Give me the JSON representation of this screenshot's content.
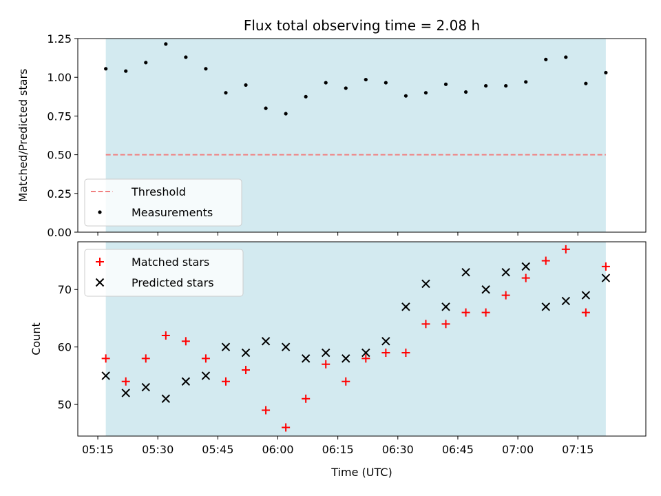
{
  "chart_data": [
    {
      "type": "scatter",
      "title": "Flux total observing time = 2.08 h",
      "xlabel": "",
      "ylabel": "Matched/Predicted stars",
      "ylim": [
        0.0,
        1.25
      ],
      "yticks": [
        "0.00",
        "0.25",
        "0.50",
        "0.75",
        "1.00",
        "1.25"
      ],
      "xlim": [
        "05:10",
        "07:32"
      ],
      "shaded_span": [
        "05:17",
        "07:22"
      ],
      "shade_color": "#d3eaf0",
      "threshold": {
        "name": "Threshold",
        "value": 0.5,
        "color": "#f08080",
        "x_range": [
          "05:17",
          "07:22"
        ]
      },
      "series": [
        {
          "name": "Measurements",
          "color": "#000000",
          "x": [
            "05:17",
            "05:22",
            "05:27",
            "05:32",
            "05:37",
            "05:42",
            "05:47",
            "05:52",
            "05:57",
            "06:02",
            "06:07",
            "06:12",
            "06:17",
            "06:22",
            "06:27",
            "06:32",
            "06:37",
            "06:42",
            "06:47",
            "06:52",
            "06:57",
            "07:02",
            "07:07",
            "07:12",
            "07:17",
            "07:22"
          ],
          "y": [
            1.055,
            1.04,
            1.095,
            1.215,
            1.13,
            1.055,
            0.9,
            0.95,
            0.8,
            0.765,
            0.875,
            0.965,
            0.93,
            0.985,
            0.965,
            0.88,
            0.9,
            0.955,
            0.905,
            0.945,
            0.945,
            0.97,
            1.115,
            1.13,
            0.96,
            1.03
          ]
        }
      ],
      "legend": [
        "Threshold",
        "Measurements"
      ],
      "legend_position": "lower-left"
    },
    {
      "type": "scatter",
      "title": "",
      "xlabel": "Time (UTC)",
      "ylabel": "Count",
      "ylim": [
        44.5,
        78.3
      ],
      "yticks": [
        "50",
        "60",
        "70"
      ],
      "xlim": [
        "05:10",
        "07:32"
      ],
      "xticks": [
        "05:15",
        "05:30",
        "05:45",
        "06:00",
        "06:15",
        "06:30",
        "06:45",
        "07:00",
        "07:15"
      ],
      "shaded_span": [
        "05:17",
        "07:22"
      ],
      "shade_color": "#d3eaf0",
      "series": [
        {
          "name": "Matched stars",
          "marker": "plus",
          "color": "#ff0000",
          "x": [
            "05:17",
            "05:22",
            "05:27",
            "05:32",
            "05:37",
            "05:42",
            "05:47",
            "05:52",
            "05:57",
            "06:02",
            "06:07",
            "06:12",
            "06:17",
            "06:22",
            "06:27",
            "06:32",
            "06:37",
            "06:42",
            "06:47",
            "06:52",
            "06:57",
            "07:02",
            "07:07",
            "07:12",
            "07:17",
            "07:22"
          ],
          "y": [
            58,
            54,
            58,
            62,
            61,
            58,
            54,
            56,
            49,
            46,
            51,
            57,
            54,
            58,
            59,
            59,
            64,
            64,
            66,
            66,
            69,
            72,
            75,
            77,
            66,
            74
          ]
        },
        {
          "name": "Predicted stars",
          "marker": "x",
          "color": "#000000",
          "x": [
            "05:17",
            "05:22",
            "05:27",
            "05:32",
            "05:37",
            "05:42",
            "05:47",
            "05:52",
            "05:57",
            "06:02",
            "06:07",
            "06:12",
            "06:17",
            "06:22",
            "06:27",
            "06:32",
            "06:37",
            "06:42",
            "06:47",
            "06:52",
            "06:57",
            "07:02",
            "07:07",
            "07:12",
            "07:17",
            "07:22"
          ],
          "y": [
            55,
            52,
            53,
            51,
            54,
            55,
            60,
            59,
            61,
            60,
            58,
            59,
            58,
            59,
            61,
            67,
            71,
            67,
            73,
            70,
            73,
            74,
            67,
            68,
            69,
            72
          ]
        }
      ],
      "legend": [
        "Matched stars",
        "Predicted stars"
      ],
      "legend_position": "top-left"
    }
  ]
}
